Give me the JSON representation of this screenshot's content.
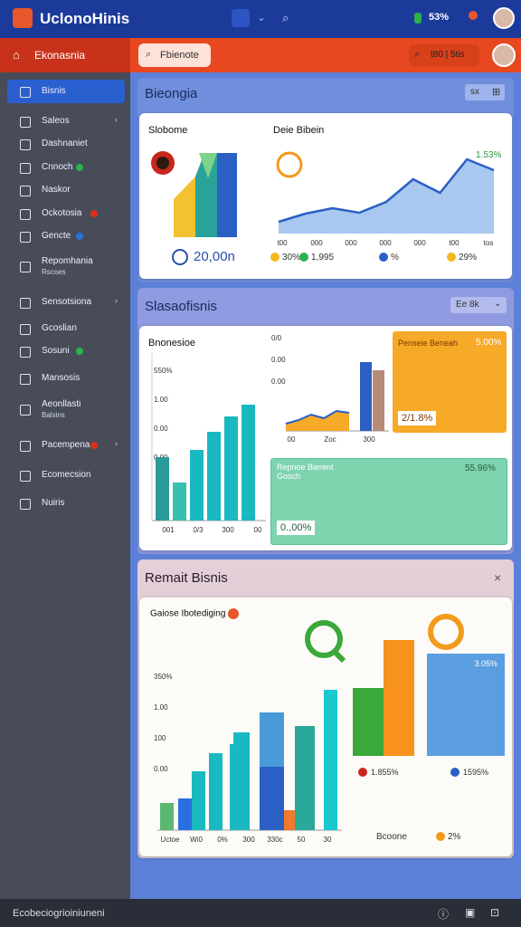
{
  "topbar": {
    "logo": "UclonoHinis",
    "battery": "53%"
  },
  "subbar": {
    "title": "Ekonasnia",
    "search": "Fbienote",
    "pill": "t80 | 5tis"
  },
  "sidebar": {
    "items": [
      {
        "label": "Bisnis"
      },
      {
        "label": "Saleos"
      },
      {
        "label": "Dashnaniet"
      },
      {
        "label": "Cnnoch"
      },
      {
        "label": "Naskor"
      },
      {
        "label": "Ockotosia"
      },
      {
        "label": "Gencte"
      },
      {
        "label": "Repomhania",
        "sub": "Rscoes"
      },
      {
        "label": "Sensotsiona"
      },
      {
        "label": "Gcoslian"
      },
      {
        "label": "Sosuni"
      },
      {
        "label": "Mansosis"
      },
      {
        "label": "Aeonllasti",
        "sub": "Balsins"
      },
      {
        "label": "Pacempena"
      },
      {
        "label": "Ecomecsion"
      },
      {
        "label": "Nuiris"
      }
    ]
  },
  "section1": {
    "title": "Bieongia",
    "button": "sx"
  },
  "card1": {
    "left_title": "Slobome",
    "right_title": "Deie Bibein",
    "big_value": "20,00n",
    "corner_value": "1.53%",
    "line": {
      "values": [
        13,
        22,
        28,
        23,
        35,
        60,
        45,
        82,
        70
      ]
    },
    "x_labels": [
      "t00",
      "000",
      "000",
      "000",
      "000",
      "t00",
      "tos"
    ],
    "legend": [
      "30%",
      "1,995",
      "%",
      "29%"
    ]
  },
  "section2": {
    "title": "Slasaofisnis",
    "dropdown": "Ee 8k"
  },
  "card2": {
    "chart_title": "Bnonesioe",
    "y_labels": [
      "550%",
      "1.00",
      "0.00",
      "0.00"
    ],
    "x_labels": [
      "001",
      "0/3",
      "300",
      "00"
    ],
    "bars": {
      "values": [
        70,
        42,
        78,
        98,
        115,
        128
      ]
    },
    "mini": {
      "y_labels": [
        "0/0",
        "0.00",
        "0.00"
      ],
      "x_labels": [
        "00",
        "Zoc",
        "300"
      ],
      "area": {
        "values": [
          8,
          12,
          18,
          14,
          22,
          20
        ]
      },
      "bars": {
        "values": [
          76,
          67
        ]
      }
    },
    "orange": {
      "title": "Penseie Beneah",
      "value": "5.00%",
      "footer": "2/1.8%"
    },
    "green": {
      "title": "Repnoe Bierent",
      "subtitle": "Gosch",
      "value": "55.96%",
      "footer": "0.,00%"
    }
  },
  "section3": {
    "title": "Remait Bisnis"
  },
  "card3": {
    "chart_title": "Gaiose Ibotediging",
    "y_labels": [
      "350%",
      "1.00",
      "100",
      "0.00"
    ],
    "x_labels": [
      "Uctoe",
      "Wi0",
      "0%",
      "300",
      "330c",
      "50",
      "30"
    ],
    "bars": {
      "values": [
        30,
        35,
        65,
        85,
        95,
        108,
        130,
        115,
        155,
        22
      ]
    },
    "right_bars": {
      "values": [
        75,
        128
      ]
    },
    "right_labels": [
      "1.855%",
      "1595%"
    ],
    "box_value": "3.05%",
    "footer": "Bcoone",
    "footer_value": "2%"
  },
  "footer": {
    "text": "Ecobeciogrioiniuneni"
  }
}
